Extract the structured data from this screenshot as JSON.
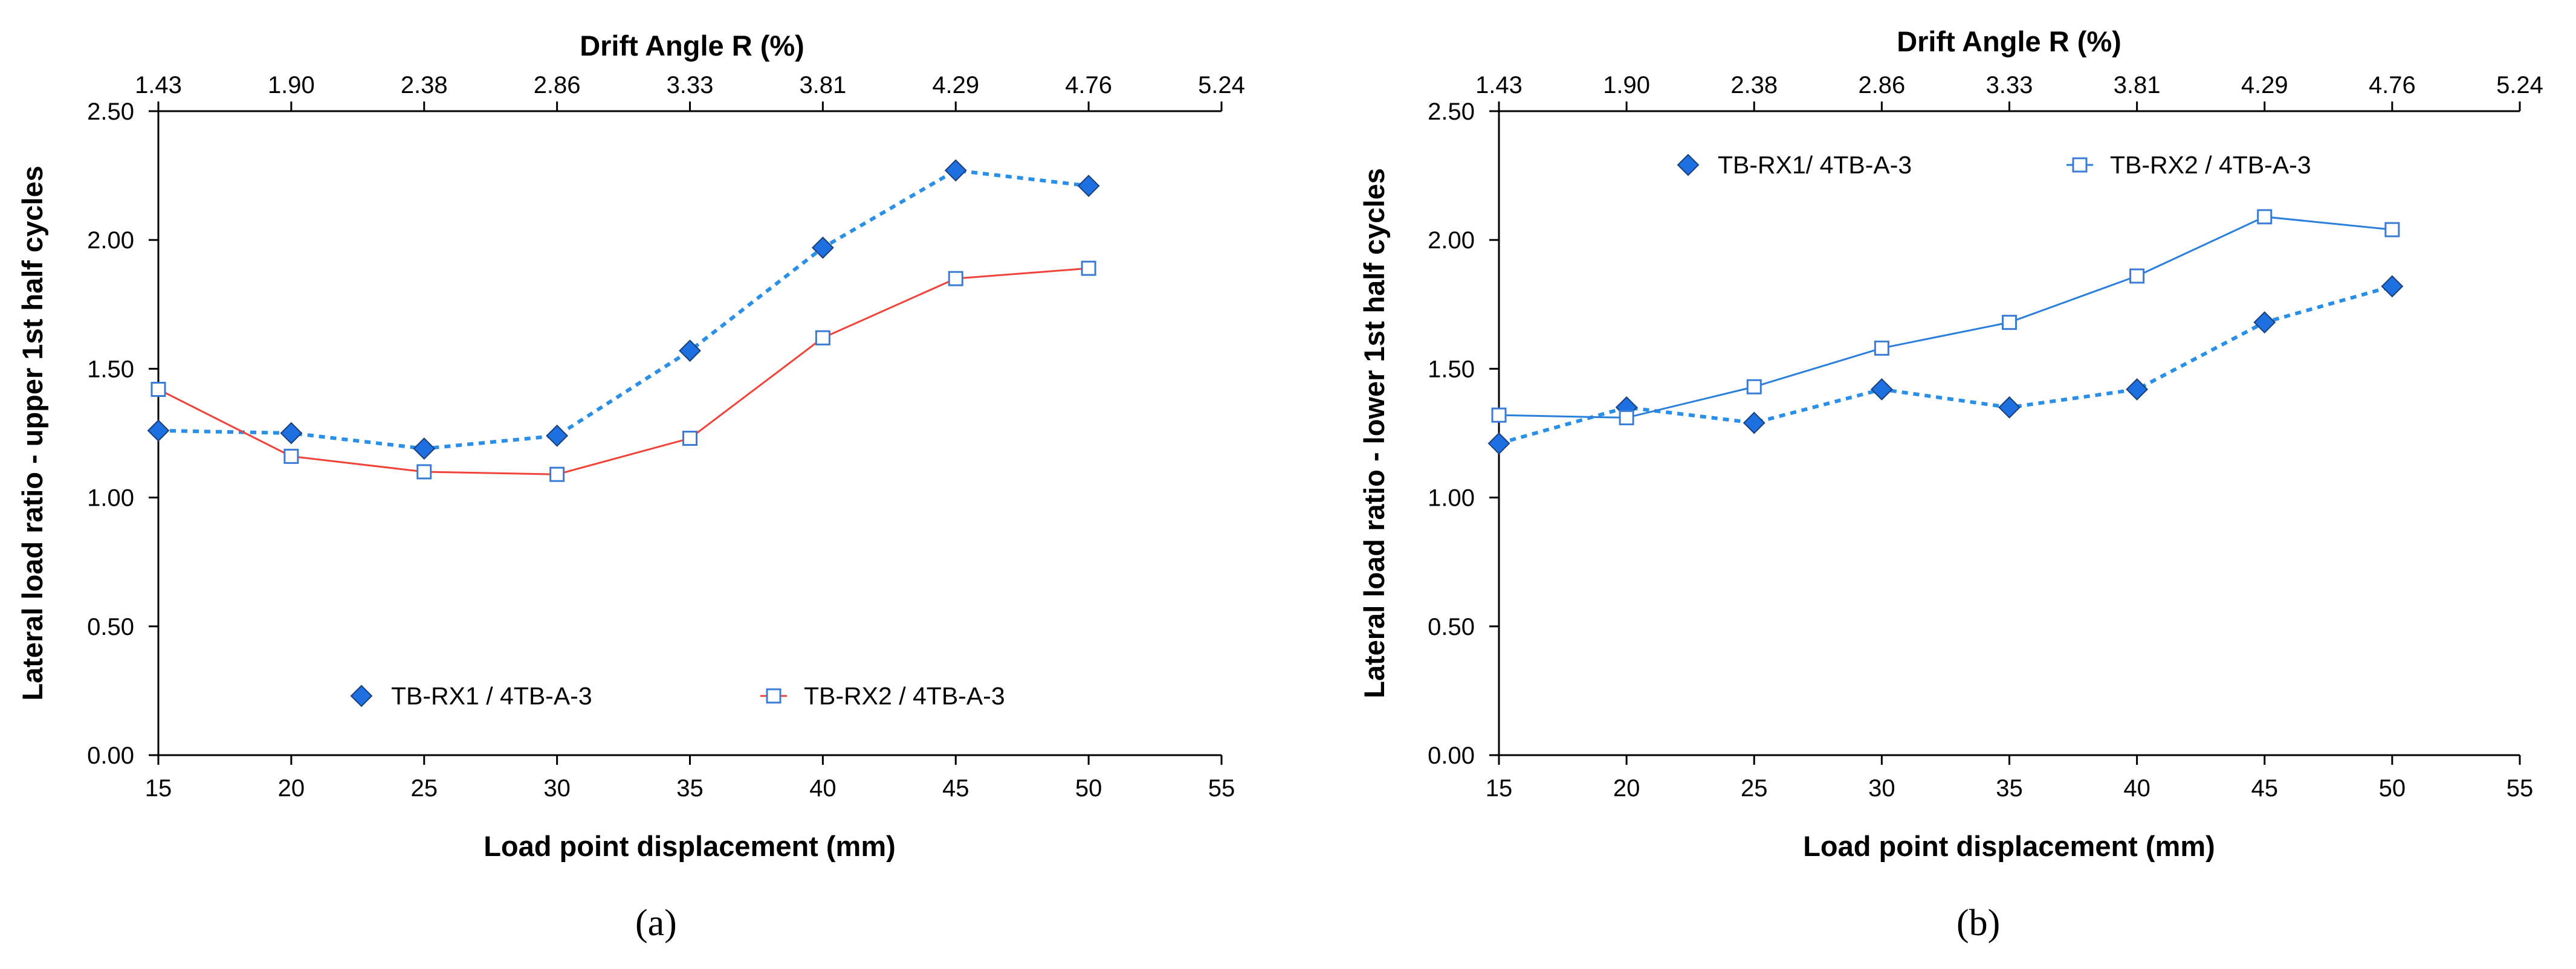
{
  "chart_data": [
    {
      "panel": "a",
      "caption": "(a)",
      "type": "line",
      "top_xlabel": "Drift Angle R (%)",
      "top_ticks": [
        "1.43",
        "1.90",
        "2.38",
        "2.86",
        "3.33",
        "3.81",
        "4.29",
        "4.76",
        "5.24"
      ],
      "xlabel": "Load point displacement (mm)",
      "ylabel": "Lateral load ratio - upper 1st half cycles",
      "xlim": [
        15,
        55
      ],
      "ylim": [
        0,
        2.5
      ],
      "x_ticks": [
        "15",
        "20",
        "25",
        "30",
        "35",
        "40",
        "45",
        "50",
        "55"
      ],
      "y_ticks": [
        "0.00",
        "0.50",
        "1.00",
        "1.50",
        "2.00",
        "2.50"
      ],
      "legend_position": "bottom-center",
      "x": [
        15,
        20,
        25,
        30,
        35,
        40,
        45,
        50
      ],
      "series": [
        {
          "name": "TB-RX1 / 4TB-A-3",
          "marker": "filled-diamond",
          "line_style": "dotted",
          "line_color": "#2a8fe6",
          "marker_color": "#1e6fe0",
          "values": [
            1.26,
            1.25,
            1.19,
            1.24,
            1.57,
            1.97,
            2.27,
            2.21
          ]
        },
        {
          "name": "TB-RX2 / 4TB-A-3",
          "marker": "open-square",
          "line_style": "solid",
          "line_color": "#f0433a",
          "marker_color": "#3a7bd5",
          "values": [
            1.42,
            1.16,
            1.1,
            1.09,
            1.23,
            1.62,
            1.85,
            1.89
          ]
        }
      ]
    },
    {
      "panel": "b",
      "caption": "(b)",
      "type": "line",
      "top_xlabel": "Drift Angle R (%)",
      "top_ticks": [
        "1.43",
        "1.90",
        "2.38",
        "2.86",
        "3.33",
        "3.81",
        "4.29",
        "4.76",
        "5.24"
      ],
      "xlabel": "Load point displacement (mm)",
      "ylabel": "Lateral load ratio - lower 1st half cycles",
      "xlim": [
        15,
        55
      ],
      "ylim": [
        0,
        2.5
      ],
      "x_ticks": [
        "15",
        "20",
        "25",
        "30",
        "35",
        "40",
        "45",
        "50",
        "55"
      ],
      "y_ticks": [
        "0.00",
        "0.50",
        "1.00",
        "1.50",
        "2.00",
        "2.50"
      ],
      "legend_position": "top-left",
      "x": [
        15,
        20,
        25,
        30,
        35,
        40,
        45,
        50
      ],
      "series": [
        {
          "name": "TB-RX1/ 4TB-A-3",
          "marker": "filled-diamond",
          "line_style": "dotted",
          "line_color": "#2a8fe6",
          "marker_color": "#1e6fe0",
          "values": [
            1.21,
            1.35,
            1.29,
            1.42,
            1.35,
            1.42,
            1.68,
            1.82
          ]
        },
        {
          "name": "TB-RX2 / 4TB-A-3",
          "marker": "open-square",
          "line_style": "solid",
          "line_color": "#2a7fdc",
          "marker_color": "#3a7bd5",
          "values": [
            1.32,
            1.31,
            1.43,
            1.58,
            1.68,
            1.86,
            2.09,
            2.04
          ]
        }
      ]
    }
  ]
}
